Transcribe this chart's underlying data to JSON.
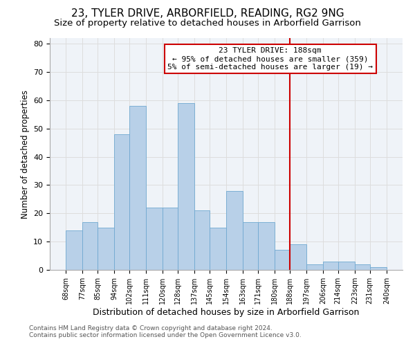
{
  "title": "23, TYLER DRIVE, ARBORFIELD, READING, RG2 9NG",
  "subtitle": "Size of property relative to detached houses in Arborfield Garrison",
  "xlabel": "Distribution of detached houses by size in Arborfield Garrison",
  "ylabel": "Number of detached properties",
  "footer_line1": "Contains HM Land Registry data © Crown copyright and database right 2024.",
  "footer_line2": "Contains public sector information licensed under the Open Government Licence v3.0.",
  "bin_edges": [
    68,
    77,
    85,
    94,
    102,
    111,
    120,
    128,
    137,
    145,
    154,
    163,
    171,
    180,
    188,
    197,
    206,
    214,
    223,
    231,
    240
  ],
  "bin_heights": [
    14,
    17,
    15,
    48,
    58,
    22,
    22,
    59,
    21,
    15,
    28,
    17,
    17,
    7,
    9,
    2,
    3,
    3,
    2,
    1
  ],
  "bar_color": "#b8d0e8",
  "bar_edgecolor": "#6fa8d0",
  "grid_color": "#dddddd",
  "vline_x": 188,
  "vline_color": "#cc0000",
  "annotation_text": "23 TYLER DRIVE: 188sqm\n← 95% of detached houses are smaller (359)\n5% of semi-detached houses are larger (19) →",
  "annotation_box_color": "#cc0000",
  "ylim": [
    0,
    82
  ],
  "yticks": [
    0,
    10,
    20,
    30,
    40,
    50,
    60,
    70,
    80
  ],
  "tick_labels": [
    "68sqm",
    "77sqm",
    "85sqm",
    "94sqm",
    "102sqm",
    "111sqm",
    "120sqm",
    "128sqm",
    "137sqm",
    "145sqm",
    "154sqm",
    "163sqm",
    "171sqm",
    "180sqm",
    "188sqm",
    "197sqm",
    "206sqm",
    "214sqm",
    "223sqm",
    "231sqm",
    "240sqm"
  ],
  "background_color": "#eff3f8",
  "title_fontsize": 11,
  "subtitle_fontsize": 9.5,
  "xlabel_fontsize": 9,
  "ylabel_fontsize": 8.5,
  "tick_fontsize": 7,
  "footer_fontsize": 6.5,
  "annot_fontsize": 8
}
